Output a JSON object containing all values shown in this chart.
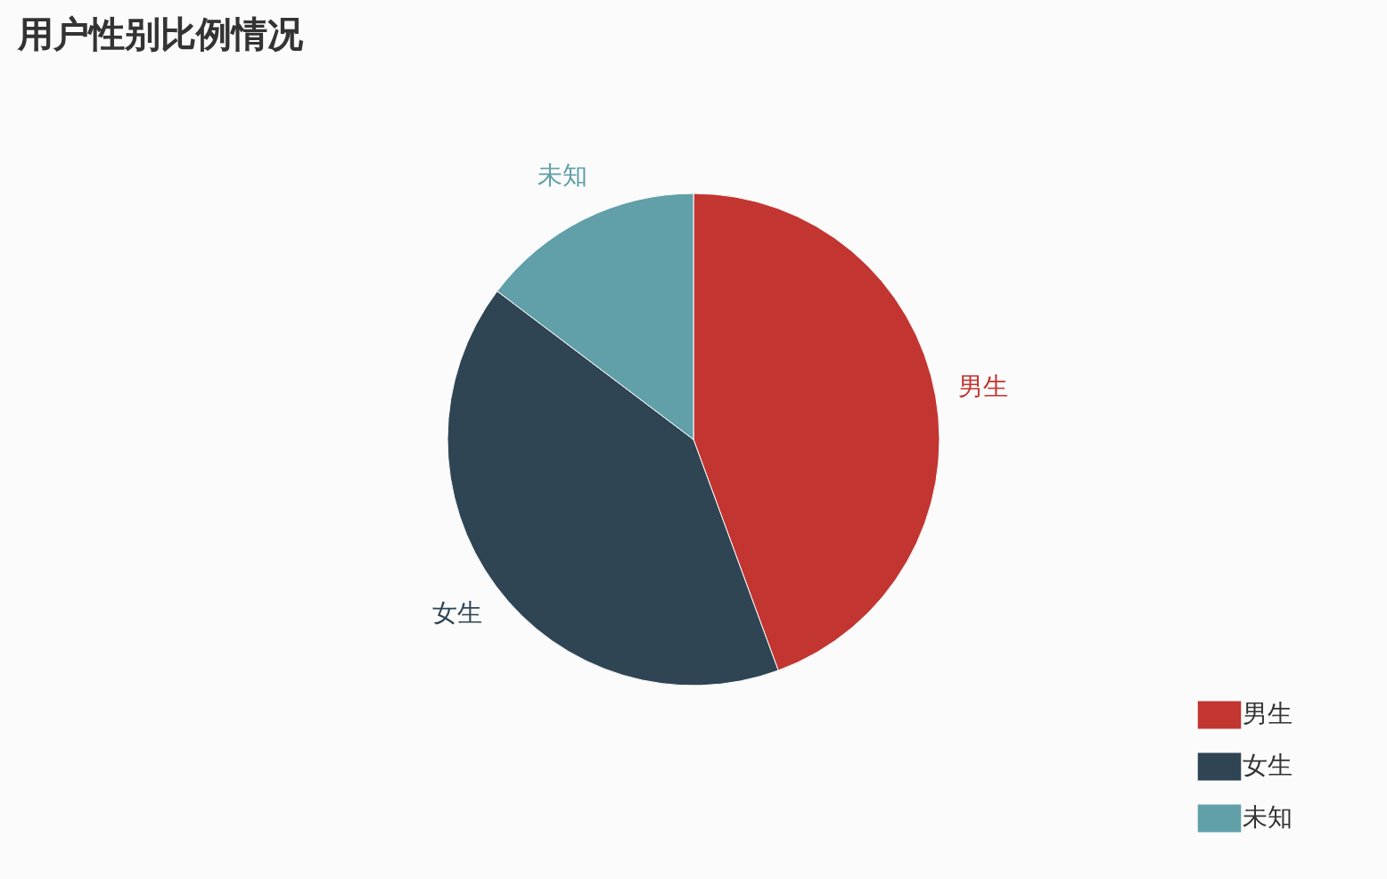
{
  "chart_data": {
    "type": "pie",
    "title": "用户性别比例情况",
    "categories": [
      "男生",
      "女生",
      "未知"
    ],
    "values": [
      44.4,
      40.9,
      14.7
    ],
    "colors": [
      "#c23531",
      "#2f4554",
      "#61a0a8"
    ],
    "legend": "bottom right"
  }
}
